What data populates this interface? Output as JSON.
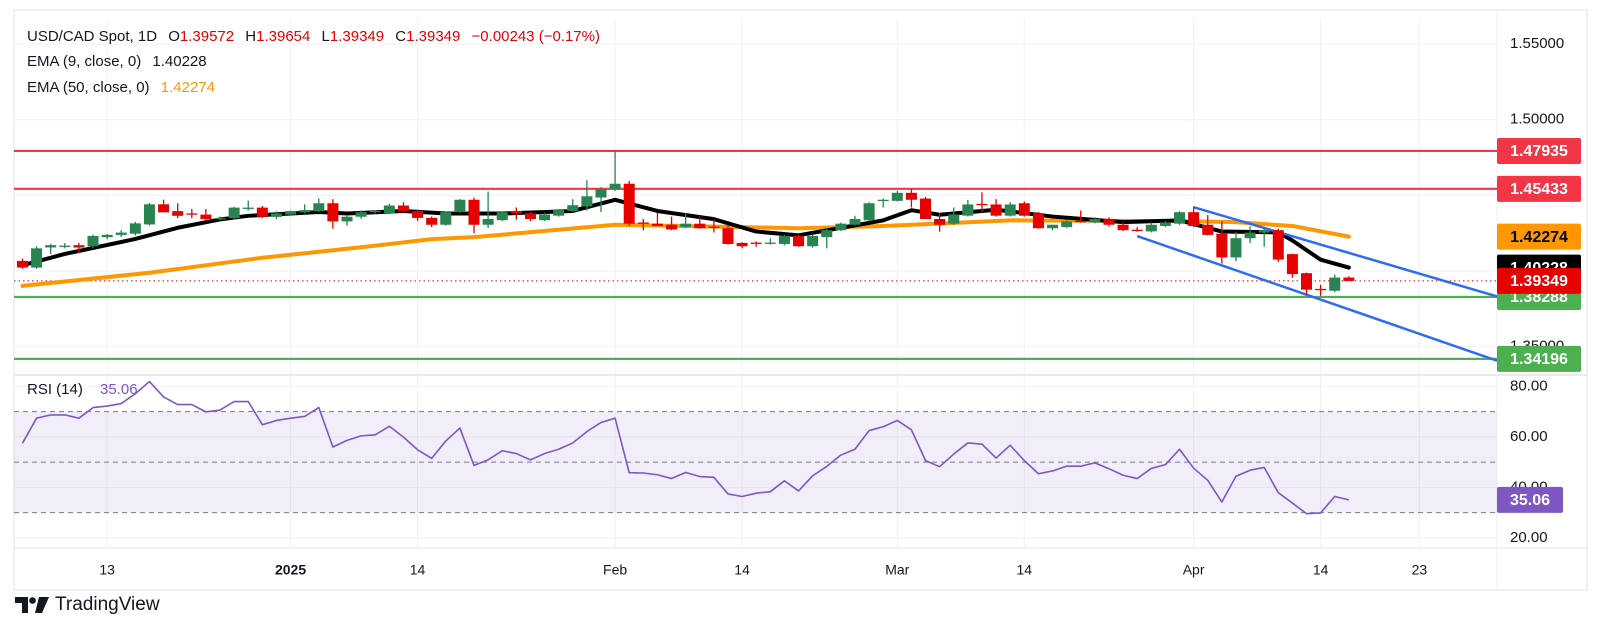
{
  "header": {
    "symbol": "USD/CAD Spot, 1D",
    "o_label": "O",
    "o_value": "1.39572",
    "h_label": "H",
    "h_value": "1.39654",
    "l_label": "L",
    "l_value": "1.39349",
    "c_label": "C",
    "c_value": "1.39349",
    "change": "−0.00243 (−0.17%)",
    "ema9_label": "EMA (9, close, 0)",
    "ema9_value": "1.40228",
    "ema50_label": "EMA (50, close, 0)",
    "ema50_value": "1.42274"
  },
  "branding": {
    "logo_text": "TradingView"
  },
  "colors": {
    "up": "#2a8452",
    "down": "#e60000",
    "resistance": "#f23645",
    "support": "#4caf50",
    "channel": "#2f6bf5",
    "ema9": "#000000",
    "ema50": "#ff9800",
    "rsi": "#7e57c2",
    "current_price": "#e60000"
  },
  "chart_data": [
    {
      "type": "candlestick",
      "title": "USD/CAD Spot, 1D",
      "x_unit": "bar",
      "xlim": [
        0.4,
        105.5
      ],
      "ylim": [
        1.3333,
        1.5672
      ],
      "grid": true,
      "x_ticks": [
        {
          "label": "13",
          "bar": 7,
          "bold": false
        },
        {
          "label": "2025",
          "bar": 20,
          "bold": true
        },
        {
          "label": "14",
          "bar": 29,
          "bold": false
        },
        {
          "label": "Feb",
          "bar": 43,
          "bold": false
        },
        {
          "label": "14",
          "bar": 52,
          "bold": false
        },
        {
          "label": "Mar",
          "bar": 63,
          "bold": false
        },
        {
          "label": "14",
          "bar": 72,
          "bold": false
        },
        {
          "label": "Apr",
          "bar": 84,
          "bold": false
        },
        {
          "label": "14",
          "bar": 93,
          "bold": false
        },
        {
          "label": "23",
          "bar": 100,
          "bold": false
        }
      ],
      "y_ticks": [
        {
          "value": 1.55,
          "label": "1.55000"
        },
        {
          "value": 1.5,
          "label": "1.50000"
        },
        {
          "value": 1.35,
          "label": "1.35000"
        }
      ],
      "y_grid": [
        1.55,
        1.5,
        1.45,
        1.4,
        1.35
      ],
      "ohlc": [
        [
          1.4067,
          1.4082,
          1.4015,
          1.4023
        ],
        [
          1.4023,
          1.4164,
          1.4015,
          1.415
        ],
        [
          1.4156,
          1.418,
          1.4112,
          1.4171
        ],
        [
          1.4166,
          1.4185,
          1.415,
          1.4168
        ],
        [
          1.4171,
          1.4185,
          1.4118,
          1.4156
        ],
        [
          1.4164,
          1.424,
          1.415,
          1.4232
        ],
        [
          1.4224,
          1.4245,
          1.421,
          1.4239
        ],
        [
          1.4239,
          1.427,
          1.4225,
          1.4254
        ],
        [
          1.4247,
          1.4325,
          1.4235,
          1.4315
        ],
        [
          1.4308,
          1.445,
          1.43,
          1.4441
        ],
        [
          1.4441,
          1.4472,
          1.4389,
          1.4388
        ],
        [
          1.4396,
          1.4448,
          1.435,
          1.4365
        ],
        [
          1.4381,
          1.441,
          1.435,
          1.4375
        ],
        [
          1.4373,
          1.441,
          1.433,
          1.4343
        ],
        [
          1.4343,
          1.436,
          1.4335,
          1.435
        ],
        [
          1.435,
          1.4425,
          1.434,
          1.4419
        ],
        [
          1.4415,
          1.4465,
          1.44,
          1.4419
        ],
        [
          1.4419,
          1.443,
          1.435,
          1.4358
        ],
        [
          1.4358,
          1.4395,
          1.4345,
          1.4381
        ],
        [
          1.4373,
          1.44,
          1.4365,
          1.4396
        ],
        [
          1.4388,
          1.444,
          1.438,
          1.4403
        ],
        [
          1.4396,
          1.448,
          1.439,
          1.4448
        ],
        [
          1.4448,
          1.4475,
          1.428,
          1.4328
        ],
        [
          1.4328,
          1.4365,
          1.43,
          1.4359
        ],
        [
          1.4359,
          1.44,
          1.4345,
          1.4389
        ],
        [
          1.4389,
          1.44,
          1.438,
          1.4397
        ],
        [
          1.4382,
          1.4445,
          1.4375,
          1.4433
        ],
        [
          1.4433,
          1.4455,
          1.4385,
          1.4397
        ],
        [
          1.4397,
          1.4405,
          1.433,
          1.4351
        ],
        [
          1.4351,
          1.436,
          1.429,
          1.4306
        ],
        [
          1.4306,
          1.4395,
          1.43,
          1.4389
        ],
        [
          1.4396,
          1.4476,
          1.4385,
          1.4471
        ],
        [
          1.4471,
          1.4485,
          1.425,
          1.4306
        ],
        [
          1.4306,
          1.4525,
          1.4285,
          1.4344
        ],
        [
          1.4336,
          1.4395,
          1.433,
          1.4389
        ],
        [
          1.4397,
          1.442,
          1.434,
          1.4382
        ],
        [
          1.4382,
          1.439,
          1.433,
          1.4344
        ],
        [
          1.4336,
          1.4385,
          1.433,
          1.4374
        ],
        [
          1.4366,
          1.441,
          1.436,
          1.4404
        ],
        [
          1.4397,
          1.4475,
          1.439,
          1.4435
        ],
        [
          1.4427,
          1.46,
          1.44,
          1.4494
        ],
        [
          1.4486,
          1.4555,
          1.439,
          1.4539
        ],
        [
          1.4539,
          1.4793,
          1.453,
          1.4577
        ],
        [
          1.4577,
          1.4595,
          1.43,
          1.4313
        ],
        [
          1.4321,
          1.4345,
          1.427,
          1.4313
        ],
        [
          1.4313,
          1.4385,
          1.43,
          1.4298
        ],
        [
          1.4306,
          1.436,
          1.427,
          1.4275
        ],
        [
          1.4291,
          1.438,
          1.4285,
          1.4313
        ],
        [
          1.4313,
          1.436,
          1.428,
          1.4283
        ],
        [
          1.4294,
          1.434,
          1.4255,
          1.4291
        ],
        [
          1.4283,
          1.43,
          1.4175,
          1.4179
        ],
        [
          1.4186,
          1.419,
          1.415,
          1.4164
        ],
        [
          1.4188,
          1.4195,
          1.416,
          1.4186
        ],
        [
          1.4183,
          1.4215,
          1.4175,
          1.4188
        ],
        [
          1.4179,
          1.424,
          1.417,
          1.4232
        ],
        [
          1.4232,
          1.424,
          1.416,
          1.4164
        ],
        [
          1.4164,
          1.424,
          1.4155,
          1.4232
        ],
        [
          1.4224,
          1.428,
          1.415,
          1.427
        ],
        [
          1.427,
          1.432,
          1.4265,
          1.4313
        ],
        [
          1.4306,
          1.4365,
          1.43,
          1.4344
        ],
        [
          1.4336,
          1.4455,
          1.433,
          1.4448
        ],
        [
          1.4464,
          1.448,
          1.442,
          1.4471
        ],
        [
          1.4464,
          1.453,
          1.446,
          1.4517
        ],
        [
          1.4517,
          1.454,
          1.442,
          1.4471
        ],
        [
          1.4479,
          1.449,
          1.4344,
          1.4344
        ],
        [
          1.4344,
          1.4385,
          1.426,
          1.4306
        ],
        [
          1.4313,
          1.442,
          1.4305,
          1.4374
        ],
        [
          1.4366,
          1.447,
          1.436,
          1.444
        ],
        [
          1.4444,
          1.452,
          1.439,
          1.444
        ],
        [
          1.444,
          1.4475,
          1.436,
          1.4366
        ],
        [
          1.4366,
          1.4455,
          1.436,
          1.444
        ],
        [
          1.4448,
          1.446,
          1.436,
          1.4366
        ],
        [
          1.4382,
          1.439,
          1.428,
          1.4283
        ],
        [
          1.4283,
          1.43,
          1.427,
          1.4306
        ],
        [
          1.4291,
          1.4335,
          1.4285,
          1.4328
        ],
        [
          1.4331,
          1.44,
          1.432,
          1.4326
        ],
        [
          1.4321,
          1.4355,
          1.4315,
          1.4344
        ],
        [
          1.4344,
          1.4355,
          1.4295,
          1.4306
        ],
        [
          1.4306,
          1.432,
          1.4265,
          1.427
        ],
        [
          1.4273,
          1.429,
          1.426,
          1.427
        ],
        [
          1.4262,
          1.432,
          1.4255,
          1.4306
        ],
        [
          1.4298,
          1.433,
          1.429,
          1.4321
        ],
        [
          1.4313,
          1.4395,
          1.4305,
          1.4389
        ],
        [
          1.4389,
          1.4425,
          1.429,
          1.4298
        ],
        [
          1.4306,
          1.437,
          1.4235,
          1.4239
        ],
        [
          1.4247,
          1.433,
          1.405,
          1.409
        ],
        [
          1.409,
          1.426,
          1.4065,
          1.4217
        ],
        [
          1.4217,
          1.4295,
          1.4185,
          1.4254
        ],
        [
          1.4254,
          1.429,
          1.416,
          1.427
        ],
        [
          1.427,
          1.428,
          1.406,
          1.4076
        ],
        [
          1.4112,
          1.4115,
          1.3955,
          1.398
        ],
        [
          1.3986,
          1.399,
          1.3845,
          1.3877
        ],
        [
          1.3882,
          1.391,
          1.3836,
          1.3878
        ],
        [
          1.387,
          1.3977,
          1.386,
          1.3957
        ],
        [
          1.39572,
          1.39654,
          1.39349,
          1.39349
        ]
      ],
      "ema9": [
        [
          1,
          1.4038
        ],
        [
          4,
          1.4113
        ],
        [
          9,
          1.4212
        ],
        [
          12,
          1.4286
        ],
        [
          15,
          1.4341
        ],
        [
          17,
          1.4365
        ],
        [
          22,
          1.439
        ],
        [
          24,
          1.438
        ],
        [
          28,
          1.4397
        ],
        [
          31,
          1.438
        ],
        [
          35,
          1.438
        ],
        [
          40,
          1.4397
        ],
        [
          43,
          1.4471
        ],
        [
          46,
          1.4397
        ],
        [
          50,
          1.4343
        ],
        [
          53,
          1.4261
        ],
        [
          56,
          1.4236
        ],
        [
          62,
          1.4335
        ],
        [
          64,
          1.4402
        ],
        [
          66,
          1.4372
        ],
        [
          70,
          1.4405
        ],
        [
          74,
          1.436
        ],
        [
          79,
          1.4323
        ],
        [
          83,
          1.4335
        ],
        [
          86,
          1.4261
        ],
        [
          90,
          1.4256
        ],
        [
          91,
          1.4202
        ],
        [
          93,
          1.4075
        ],
        [
          95,
          1.40228
        ]
      ],
      "ema50": [
        [
          1,
          1.3902
        ],
        [
          10,
          1.3989
        ],
        [
          18,
          1.4088
        ],
        [
          25,
          1.4157
        ],
        [
          30,
          1.4211
        ],
        [
          33,
          1.4224
        ],
        [
          43,
          1.4306
        ],
        [
          56,
          1.4283
        ],
        [
          62,
          1.4298
        ],
        [
          71,
          1.4335
        ],
        [
          83,
          1.433
        ],
        [
          87,
          1.4323
        ],
        [
          91,
          1.4298
        ],
        [
          95,
          1.42274
        ]
      ],
      "horizontal_levels": [
        {
          "value": 1.47935,
          "label": "1.47935",
          "kind": "resistance"
        },
        {
          "value": 1.45433,
          "label": "1.45433",
          "kind": "resistance"
        },
        {
          "value": 1.38288,
          "label": "1.38288",
          "kind": "support"
        },
        {
          "value": 1.34196,
          "label": "1.34196",
          "kind": "support"
        }
      ],
      "channel_lines": [
        {
          "start": [
            84,
            1.4422
          ],
          "end": [
            105.5,
            1.3832
          ]
        },
        {
          "start": [
            80,
            1.4231
          ],
          "end": [
            105.5,
            1.3408
          ]
        }
      ],
      "axis_labels": [
        {
          "value": 1.42274,
          "label": "1.42274",
          "bg": "#ff9800",
          "fg": "#000000"
        },
        {
          "value": 1.40228,
          "label": "1.40228",
          "bg": "#000000",
          "fg": "#ffffff"
        },
        {
          "value": 1.39349,
          "label": "1.39349",
          "bg": "#e60000",
          "fg": "#ffffff"
        }
      ],
      "current_price": 1.39349
    },
    {
      "type": "line",
      "title": "RSI (14)",
      "value_label": "35.06",
      "ylim": [
        16,
        84.5
      ],
      "y_ticks": [
        {
          "value": 80,
          "label": "80.00"
        },
        {
          "value": 60,
          "label": "60.00"
        },
        {
          "value": 40,
          "label": "40.00"
        },
        {
          "value": 20,
          "label": "20.00"
        }
      ],
      "band": [
        30,
        70
      ],
      "dashed_levels": [
        70,
        50,
        30
      ],
      "values": [
        57.5,
        67.4,
        68.7,
        68.7,
        67.4,
        71.6,
        72.2,
        73.2,
        77.1,
        81.9,
        75.8,
        72.8,
        72.8,
        69.9,
        70.6,
        74.0,
        74.0,
        64.8,
        66.5,
        67.4,
        68.1,
        71.6,
        56.0,
        58.6,
        60.4,
        60.8,
        64.2,
        59.9,
        54.9,
        51.5,
        58.4,
        63.5,
        48.7,
        50.9,
        54.5,
        53.4,
        50.9,
        53.4,
        55.1,
        57.6,
        62.1,
        65.7,
        67.4,
        45.8,
        45.7,
        45.0,
        43.5,
        45.9,
        44.3,
        44.0,
        37.4,
        36.4,
        37.7,
        38.3,
        42.6,
        38.6,
        44.6,
        48.3,
        52.8,
        55.1,
        62.5,
        64.0,
        66.5,
        62.8,
        50.6,
        48.2,
        53.2,
        57.6,
        57.1,
        51.6,
        56.7,
        50.6,
        45.4,
        46.5,
        48.4,
        48.4,
        49.7,
        47.4,
        44.8,
        43.5,
        47.5,
        49.0,
        55.1,
        47.6,
        42.8,
        34.2,
        44.4,
        46.8,
        47.9,
        37.9,
        33.8,
        29.6,
        29.9,
        36.4,
        35.06
      ]
    }
  ]
}
